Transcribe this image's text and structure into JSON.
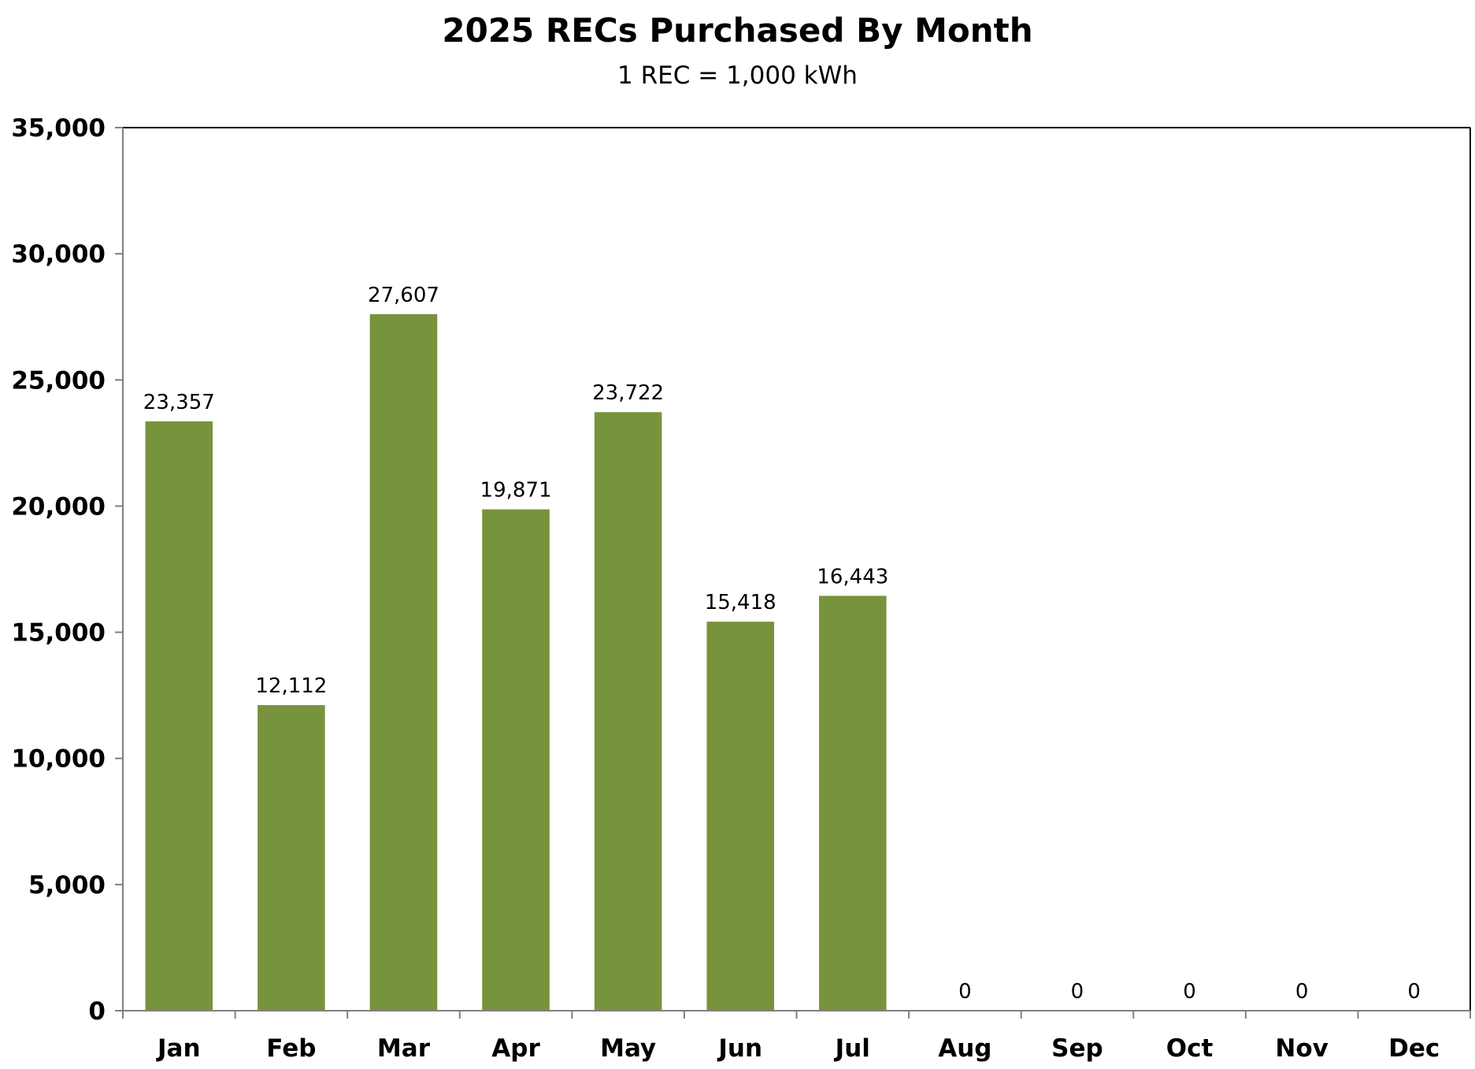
{
  "chart_data": {
    "type": "bar",
    "title": "2025 RECs Purchased By Month",
    "subtitle": "1 REC = 1,000 kWh",
    "xlabel": "",
    "ylabel": "",
    "categories": [
      "Jan",
      "Feb",
      "Mar",
      "Apr",
      "May",
      "Jun",
      "Jul",
      "Aug",
      "Sep",
      "Oct",
      "Nov",
      "Dec"
    ],
    "values": [
      23357,
      12112,
      27607,
      19871,
      23722,
      15418,
      16443,
      0,
      0,
      0,
      0,
      0
    ],
    "data_labels": [
      "23,357",
      "12,112",
      "27,607",
      "19,871",
      "23,722",
      "15,418",
      "16,443",
      "0",
      "0",
      "0",
      "0",
      "0"
    ],
    "ylim": [
      0,
      35000
    ],
    "yticks": [
      0,
      5000,
      10000,
      15000,
      20000,
      25000,
      30000,
      35000
    ],
    "ytick_labels": [
      "0",
      "5,000",
      "10,000",
      "15,000",
      "20,000",
      "25,000",
      "30,000",
      "35,000"
    ],
    "grid": false,
    "legend": "none",
    "bar_color": "#77933C"
  }
}
